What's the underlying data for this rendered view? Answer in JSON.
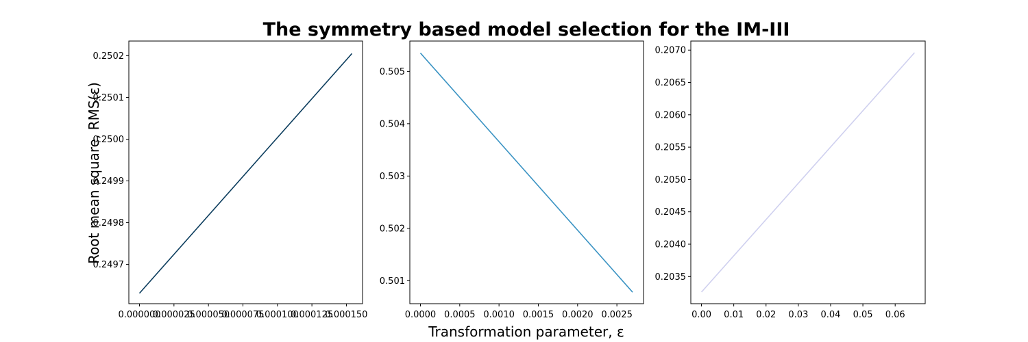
{
  "figure": {
    "title": "The symmetry based model selection for the IM-III",
    "xlabel": "Transformation parameter, ε",
    "ylabel": "Root mean square, RMS(ε)"
  },
  "chart_data": [
    {
      "type": "line",
      "title": "",
      "xlim": [
        -7.7e-06,
        0.0001617
      ],
      "ylim": [
        0.249606,
        0.250235
      ],
      "x_ticks": [
        0.0,
        2.5e-05,
        5e-05,
        7.5e-05,
        0.0001,
        0.000125,
        0.00015
      ],
      "x_tick_labels": [
        "0.000000",
        "0.000025",
        "0.000050",
        "0.000075",
        "0.000100",
        "0.000125",
        "0.000150"
      ],
      "y_ticks": [
        0.2497,
        0.2498,
        0.2499,
        0.25,
        0.2501,
        0.2502
      ],
      "y_tick_labels": [
        "0.2497",
        "0.2498",
        "0.2499",
        "0.2500",
        "0.2501",
        "0.2502"
      ],
      "series": [
        {
          "color": "#0b3c5d",
          "x": [
            0.0,
            0.000154
          ],
          "y": [
            0.249631,
            0.250205
          ]
        }
      ]
    },
    {
      "type": "line",
      "title": "",
      "xlim": [
        -0.000135,
        0.002839
      ],
      "ylim": [
        0.50056,
        0.50558
      ],
      "x_ticks": [
        0.0,
        0.0005,
        0.001,
        0.0015,
        0.002,
        0.0025
      ],
      "x_tick_labels": [
        "0.0000",
        "0.0005",
        "0.0010",
        "0.0015",
        "0.0020",
        "0.0025"
      ],
      "y_ticks": [
        0.501,
        0.502,
        0.503,
        0.504,
        0.505
      ],
      "y_tick_labels": [
        "0.501",
        "0.502",
        "0.503",
        "0.504",
        "0.505"
      ],
      "series": [
        {
          "color": "#3a93c3",
          "x": [
            0.0,
            0.0027
          ],
          "y": [
            0.50535,
            0.50078
          ]
        }
      ]
    },
    {
      "type": "line",
      "title": "",
      "xlim": [
        -0.0033,
        0.0693
      ],
      "ylim": [
        0.20308,
        0.20714
      ],
      "x_ticks": [
        0.0,
        0.01,
        0.02,
        0.03,
        0.04,
        0.05,
        0.06
      ],
      "x_tick_labels": [
        "0.00",
        "0.01",
        "0.02",
        "0.03",
        "0.04",
        "0.05",
        "0.06"
      ],
      "y_ticks": [
        0.2035,
        0.204,
        0.2045,
        0.205,
        0.2055,
        0.206,
        0.2065,
        0.207
      ],
      "y_tick_labels": [
        "0.2035",
        "0.2040",
        "0.2045",
        "0.2050",
        "0.2055",
        "0.2060",
        "0.2065",
        "0.2070"
      ],
      "series": [
        {
          "color": "#cfd0ef",
          "x": [
            0.0,
            0.066
          ],
          "y": [
            0.20326,
            0.20696
          ]
        }
      ]
    }
  ]
}
